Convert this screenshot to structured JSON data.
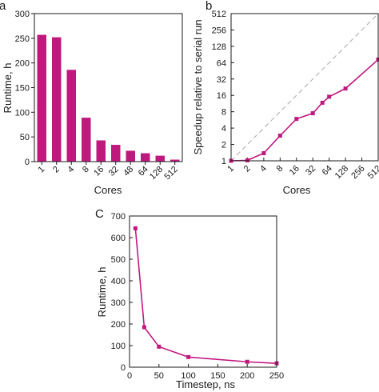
{
  "colors": {
    "accent": "#C0197E",
    "axis": "#1a1a1a",
    "diagonal": "#b5b5b5"
  },
  "chart_data": [
    {
      "panel": "a",
      "type": "bar",
      "categories": [
        "1",
        "2",
        "4",
        "8",
        "16",
        "32",
        "48",
        "64",
        "128",
        "512"
      ],
      "values": [
        257,
        252,
        186,
        89,
        43,
        34,
        22,
        17,
        12,
        4
      ],
      "xlabel": "Cores",
      "ylabel": "Runtime, h",
      "ylim": [
        0,
        300
      ],
      "yticks": [
        "0",
        "50",
        "100",
        "150",
        "200",
        "250",
        "300"
      ],
      "grid": false
    },
    {
      "panel": "b",
      "type": "line",
      "x": [
        1,
        2,
        4,
        8,
        16,
        32,
        48,
        64,
        128,
        512
      ],
      "y": [
        1,
        1.02,
        1.38,
        2.9,
        5.9,
        7.5,
        11.7,
        15.1,
        21.4,
        73
      ],
      "reference_line": "ideal speedup (y = x), dashed",
      "xscale": "log2",
      "yscale": "log2",
      "xlabel": "Cores",
      "ylabel": "Speedup relative to serial run",
      "xticks": [
        "1",
        "2",
        "4",
        "8",
        "16",
        "32",
        "64",
        "128",
        "256",
        "512"
      ],
      "yticks": [
        "1",
        "2",
        "4",
        "8",
        "16",
        "32",
        "64",
        "128",
        "256",
        "512"
      ],
      "xlim": [
        1,
        512
      ],
      "ylim": [
        1,
        512
      ],
      "grid": false
    },
    {
      "panel": "C",
      "type": "line",
      "x": [
        10,
        25,
        50,
        100,
        200,
        250
      ],
      "y": [
        643,
        185,
        95,
        47,
        25,
        18
      ],
      "xlabel": "Timestep, ns",
      "ylabel": "Runtime, h",
      "xticks": [
        "0",
        "50",
        "100",
        "150",
        "200",
        "250"
      ],
      "yticks": [
        "0",
        "100",
        "200",
        "300",
        "400",
        "500",
        "600",
        "700"
      ],
      "xlim": [
        0,
        250
      ],
      "ylim": [
        0,
        700
      ],
      "grid": false
    }
  ]
}
